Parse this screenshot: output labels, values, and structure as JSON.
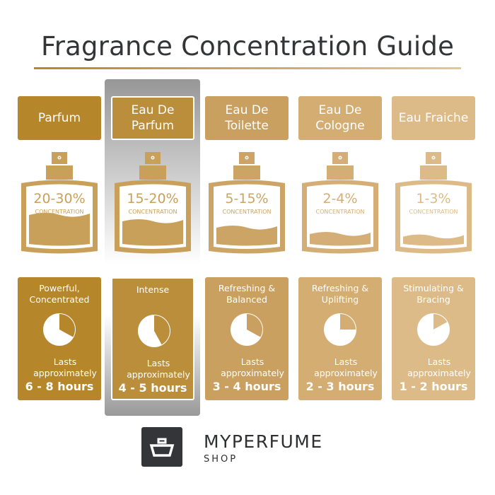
{
  "title": "Fragrance Concentration Guide",
  "concentration_label": "CONCENTRATION",
  "lasts_label": "Lasts approximately",
  "columns": [
    {
      "name": "Parfum",
      "concentration": "20-30%",
      "description": "Powerful, Concentrated",
      "duration": "6 - 8 hours",
      "color": "#b5862a",
      "bottle_color": "#c9a05a",
      "fill_level": 0.4,
      "pie_gold_fraction": 0.33
    },
    {
      "name": "Eau De Parfum",
      "concentration": "15-20%",
      "description": "Intense",
      "duration": "4 - 5 hours",
      "color": "#bb8e3c",
      "bottle_color": "#c9a05a",
      "fill_level": 0.3,
      "pie_gold_fraction": 0.42,
      "highlighted": true
    },
    {
      "name": "Eau De Toilette",
      "concentration": "5-15%",
      "description": "Refreshing & Balanced",
      "duration": "3 - 4 hours",
      "color": "#c9a060",
      "bottle_color": "#cca466",
      "fill_level": 0.2,
      "pie_gold_fraction": 0.33
    },
    {
      "name": "Eau De Cologne",
      "concentration": "2-4%",
      "description": "Refreshing & Uplifting",
      "duration": "2 - 3 hours",
      "color": "#d4ad72",
      "bottle_color": "#d4ae76",
      "fill_level": 0.1,
      "pie_gold_fraction": 0.25
    },
    {
      "name": "Eau Fraiche",
      "concentration": "1-3%",
      "description": "Stimulating & Bracing",
      "duration": "1 - 2 hours",
      "color": "#dcbb88",
      "bottle_color": "#dcbb88",
      "fill_level": 0.06,
      "pie_gold_fraction": 0.17
    }
  ],
  "logo": {
    "brand": "MYPERFUME",
    "sub": "SHOP"
  }
}
